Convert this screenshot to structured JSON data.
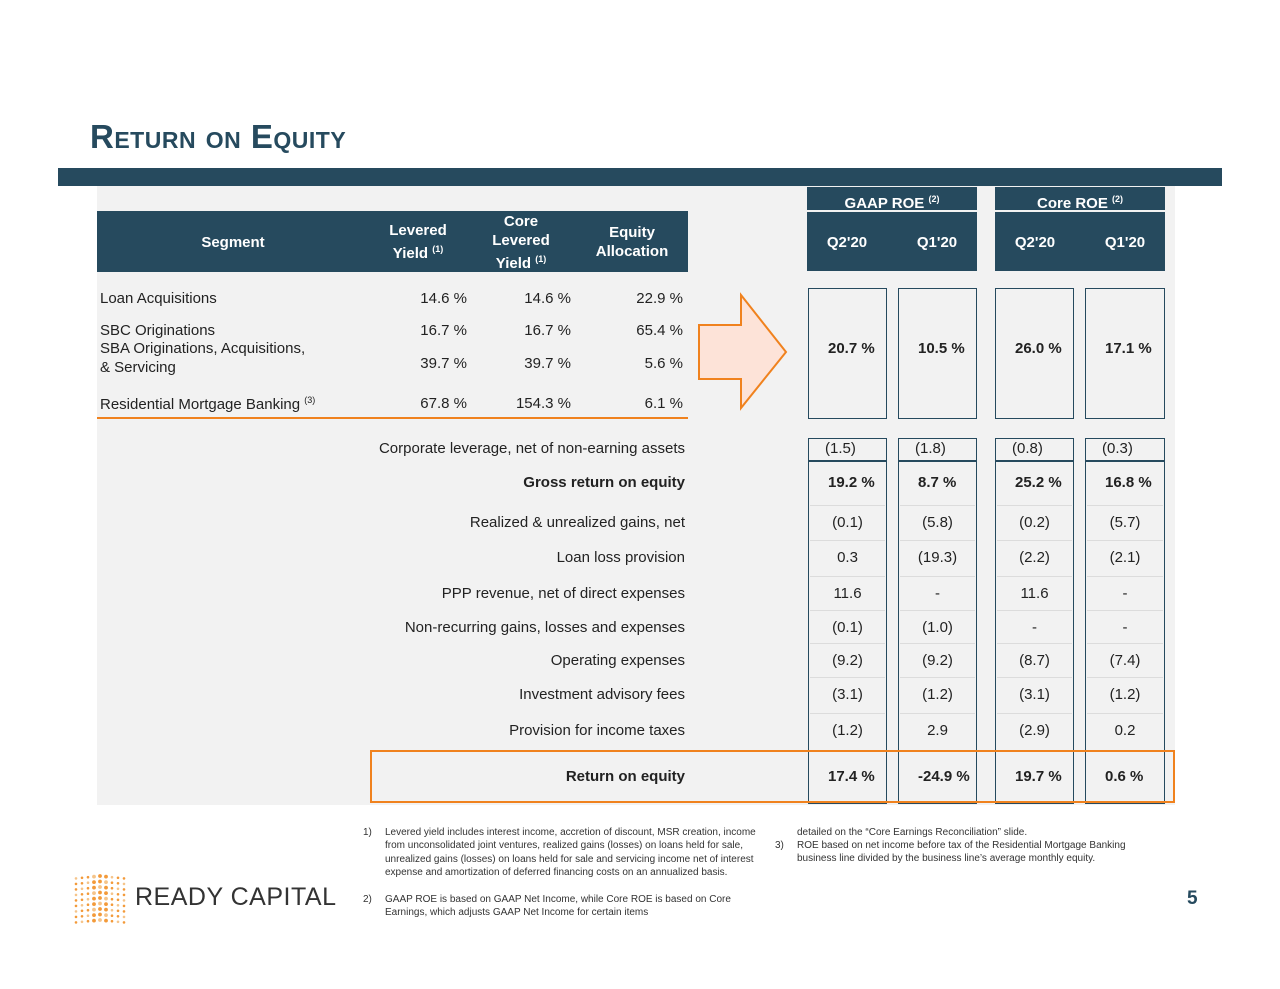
{
  "title": "Return on Equity",
  "left_headers": {
    "segment": "Segment",
    "levered_yield": "Levered",
    "levered_yield2": "Yield",
    "core_levered_yield": "Core",
    "core_levered_yield2": "Levered",
    "core_levered_yield3": "Yield",
    "equity_allocation": "Equity",
    "equity_allocation2": "Allocation",
    "note1": "(1)"
  },
  "right_headers": {
    "gaap": "GAAP ROE",
    "core": "Core ROE",
    "note2": "(2)",
    "periods": [
      "Q2'20",
      "Q1'20",
      "Q2'20",
      "Q1'20"
    ]
  },
  "segments": [
    {
      "name": "Loan Acquisitions",
      "levered_yield": "14.6 %",
      "core_levered_yield": "14.6 %",
      "equity_allocation": "22.9 %"
    },
    {
      "name": "SBC Originations",
      "levered_yield": "16.7 %",
      "core_levered_yield": "16.7 %",
      "equity_allocation": "65.4 %"
    },
    {
      "name": "SBA Originations, Acquisitions,",
      "name2": "& Servicing",
      "levered_yield": "39.7 %",
      "core_levered_yield": "39.7 %",
      "equity_allocation": "5.6 %"
    },
    {
      "name": "Residential Mortgage Banking",
      "note": "(3)",
      "levered_yield": "67.8 %",
      "core_levered_yield": "154.3 %",
      "equity_allocation": "6.1 %"
    }
  ],
  "segment_roe": [
    "20.7  %",
    "10.5  %",
    "26.0  %",
    "17.1  %"
  ],
  "rows": [
    {
      "label": "Corporate leverage, net of non-earning assets",
      "values": [
        "(1.5)",
        "(1.8)",
        "(0.8)",
        "(0.3)"
      ]
    },
    {
      "label": "Gross return on equity",
      "bold": true,
      "values": [
        "19.2 %",
        "8.7 %",
        "25.2 %",
        "16.8 %"
      ]
    },
    {
      "label": "Realized & unrealized gains, net",
      "values": [
        "(0.1)",
        "(5.8)",
        "(0.2)",
        "(5.7)"
      ]
    },
    {
      "label": "Loan loss provision",
      "values": [
        "0.3",
        "(19.3)",
        "(2.2)",
        "(2.1)"
      ]
    },
    {
      "label": "PPP revenue, net of direct expenses",
      "values": [
        "11.6",
        "-",
        "11.6",
        "-"
      ]
    },
    {
      "label": "Non-recurring gains, losses and expenses",
      "values": [
        "(0.1)",
        "(1.0)",
        "-",
        "-"
      ]
    },
    {
      "label": "Operating expenses",
      "values": [
        "(9.2)",
        "(9.2)",
        "(8.7)",
        "(7.4)"
      ]
    },
    {
      "label": "Investment advisory fees",
      "values": [
        "(3.1)",
        "(1.2)",
        "(3.1)",
        "(1.2)"
      ]
    },
    {
      "label": "Provision for income taxes",
      "values": [
        "(1.2)",
        "2.9",
        "(2.9)",
        "0.2"
      ]
    },
    {
      "label": "Return on equity",
      "bold": true,
      "values": [
        "17.4 %",
        "-24.9 %",
        "19.7 %",
        "0.6 %"
      ]
    }
  ],
  "footnotes": [
    {
      "n": "1)",
      "text": "Levered yield includes interest income, accretion of discount, MSR creation, income from unconsolidated joint ventures, realized gains (losses) on loans held for sale, unrealized gains (losses) on loans held for sale and servicing income net of interest expense and amortization of deferred financing costs on an annualized basis."
    },
    {
      "n": "2)",
      "text": "GAAP ROE is based on GAAP Net Income, while Core ROE is based on Core Earnings, which adjusts GAAP Net Income for certain items"
    },
    {
      "n": "",
      "text": "detailed on  the “Core Earnings Reconciliation” slide."
    },
    {
      "n": "3)",
      "text": "ROE based on net income before tax of the Residential Mortgage Banking business line divided by the business line’s average monthly equity."
    }
  ],
  "logo": "READY CAPITAL",
  "page_number": "5",
  "colors": {
    "navy": "#264a5e",
    "orange": "#f0821e",
    "arrow_fill": "#fde3d8"
  }
}
